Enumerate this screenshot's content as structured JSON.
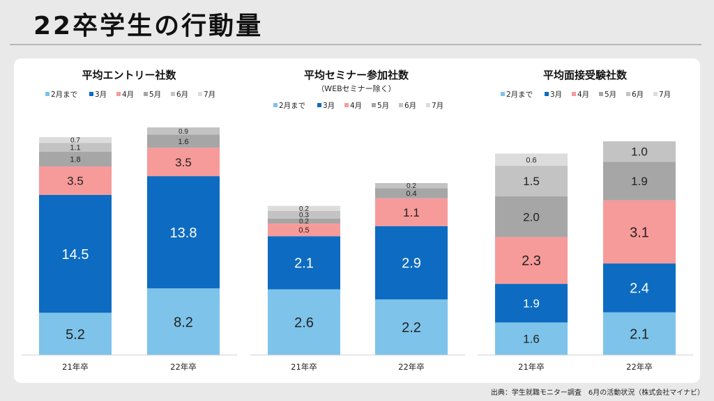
{
  "page": {
    "title": "22卒学生の行動量",
    "source": "出典：学生就職モニター調査　6月の活動状況（株式会社マイナビ）"
  },
  "colors": {
    "2月まで": "#7dc3ea",
    "3月": "#0d6cc1",
    "4月": "#f79a9a",
    "5月": "#a6a6a6",
    "6月": "#c3c3c3",
    "7月": "#dcdcdc"
  },
  "chart_data": [
    {
      "type": "bar",
      "stacked": true,
      "title": "平均エントリー社数",
      "subtitle": "",
      "categories": [
        "21年卒",
        "22年卒"
      ],
      "series": [
        {
          "name": "2月まで",
          "values": [
            5.2,
            8.2
          ]
        },
        {
          "name": "3月",
          "values": [
            14.5,
            13.8
          ]
        },
        {
          "name": "4月",
          "values": [
            3.5,
            3.5
          ]
        },
        {
          "name": "5月",
          "values": [
            1.8,
            1.6
          ]
        },
        {
          "name": "6月",
          "values": [
            1.1,
            0.9
          ]
        },
        {
          "name": "7月",
          "values": [
            0.7,
            null
          ]
        }
      ],
      "legend_position": "top",
      "grid": false
    },
    {
      "type": "bar",
      "stacked": true,
      "title": "平均セミナー参加社数",
      "subtitle": "（WEBセミナー除く）",
      "categories": [
        "21年卒",
        "22年卒"
      ],
      "series": [
        {
          "name": "2月まで",
          "values": [
            2.6,
            2.2
          ]
        },
        {
          "name": "3月",
          "values": [
            2.1,
            2.9
          ]
        },
        {
          "name": "4月",
          "values": [
            0.5,
            1.1
          ]
        },
        {
          "name": "5月",
          "values": [
            0.2,
            0.4
          ]
        },
        {
          "name": "6月",
          "values": [
            0.3,
            0.2
          ]
        },
        {
          "name": "7月",
          "values": [
            0.2,
            null
          ]
        }
      ],
      "legend_position": "top",
      "grid": false
    },
    {
      "type": "bar",
      "stacked": true,
      "title": "平均面接受験社数",
      "subtitle": "",
      "categories": [
        "21年卒",
        "22年卒"
      ],
      "series": [
        {
          "name": "2月まで",
          "values": [
            1.6,
            2.1
          ]
        },
        {
          "name": "3月",
          "values": [
            1.9,
            2.4
          ]
        },
        {
          "name": "4月",
          "values": [
            2.3,
            3.1
          ]
        },
        {
          "name": "5月",
          "values": [
            2.0,
            1.9
          ]
        },
        {
          "name": "6月",
          "values": [
            1.5,
            1.0
          ]
        },
        {
          "name": "7月",
          "values": [
            0.6,
            null
          ]
        }
      ],
      "legend_position": "top",
      "grid": false
    }
  ]
}
